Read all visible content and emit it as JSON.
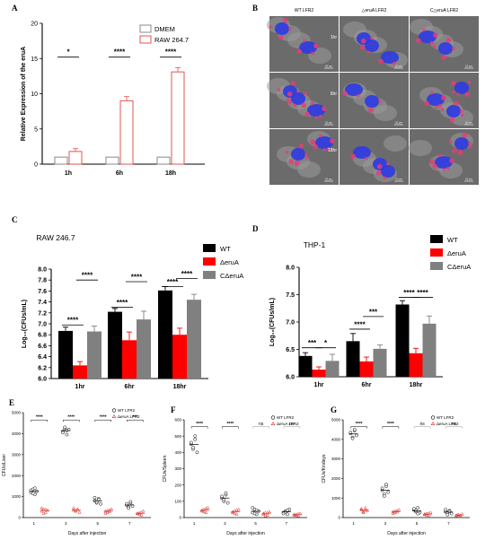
{
  "colors": {
    "dmem": "#888888",
    "raw": "#e0544f",
    "wt": "#000000",
    "mutant": "#ff0000",
    "comp": "#808080",
    "nucleus": "#2f3ce0",
    "bacteria": "#e23d78"
  },
  "panels": {
    "A": "A",
    "B": "B",
    "C": "C",
    "D": "D",
    "E": "E",
    "F": "F",
    "G": "G"
  },
  "micrographs": {
    "columns": [
      "WT LFR2",
      "△eruA LFR2",
      "C△eruA LFR2"
    ],
    "rows": [
      "1hr",
      "6hr",
      "18hr"
    ],
    "scale_text": "10 μm"
  },
  "chart_data": [
    {
      "id": "A",
      "type": "bar",
      "title": "",
      "xlabel": "",
      "ylabel": "Relative Expression of the eruA",
      "categories": [
        "1h",
        "6h",
        "18h"
      ],
      "ylim": [
        0,
        20
      ],
      "yticks": [
        0,
        5,
        10,
        15,
        20
      ],
      "legend_position": "top-right",
      "series": [
        {
          "name": "DMEM",
          "values": [
            1.0,
            1.0,
            1.0
          ],
          "errors": [
            0,
            0,
            0
          ],
          "style": "outline",
          "color": "#888888"
        },
        {
          "name": "RAW 264.7",
          "values": [
            1.8,
            9.0,
            13.1
          ],
          "errors": [
            0.4,
            0.6,
            0.6
          ],
          "style": "outline",
          "color": "#e0544f"
        }
      ],
      "significance": [
        "*",
        "****",
        "****"
      ]
    },
    {
      "id": "C",
      "type": "bar",
      "title": "RAW 246.7",
      "xlabel": "",
      "ylabel": "Log₁₀(CFUs/mL)",
      "categories": [
        "1hr",
        "6hr",
        "18hr"
      ],
      "ylim": [
        6.0,
        8.0
      ],
      "yticks": [
        "6.0",
        "6.2",
        "6.4",
        "6.6",
        "6.8",
        "7.0",
        "7.2",
        "7.4",
        "7.6",
        "7.8",
        "8.0"
      ],
      "legend_position": "top-right",
      "series": [
        {
          "name": "WT",
          "values": [
            6.87,
            7.22,
            7.61
          ],
          "errors": [
            0.07,
            0.06,
            0.07
          ],
          "color": "#000000"
        },
        {
          "name": "ΔeruA",
          "values": [
            6.24,
            6.7,
            6.8
          ],
          "errors": [
            0.07,
            0.15,
            0.12
          ],
          "color": "#ff0000"
        },
        {
          "name": "CΔeruA",
          "values": [
            6.86,
            7.08,
            7.44
          ],
          "errors": [
            0.1,
            0.15,
            0.1
          ],
          "color": "#808080"
        }
      ],
      "significance": [
        [
          "****",
          "****"
        ],
        [
          "****",
          "****"
        ],
        [
          "****",
          "****"
        ]
      ]
    },
    {
      "id": "D",
      "type": "bar",
      "title": "THP-1",
      "xlabel": "",
      "ylabel": "Log₁₀(CFUs/mL)",
      "categories": [
        "1hr",
        "6hr",
        "18hr"
      ],
      "ylim": [
        6.0,
        8.0
      ],
      "yticks": [
        "6.0",
        "6.5",
        "7.0",
        "7.5",
        "8.0"
      ],
      "legend_position": "top-right",
      "series": [
        {
          "name": "WT",
          "values": [
            6.38,
            6.65,
            7.32
          ],
          "errors": [
            0.06,
            0.14,
            0.07
          ],
          "color": "#000000"
        },
        {
          "name": "ΔeruA",
          "values": [
            6.13,
            6.28,
            6.43
          ],
          "errors": [
            0.05,
            0.08,
            0.09
          ],
          "color": "#ff0000"
        },
        {
          "name": "CΔeruA",
          "values": [
            6.29,
            6.51,
            6.97
          ],
          "errors": [
            0.12,
            0.07,
            0.14
          ],
          "color": "#808080"
        }
      ],
      "significance": [
        [
          "***",
          "*"
        ],
        [
          "****",
          "***"
        ],
        [
          "****",
          "****"
        ]
      ]
    },
    {
      "id": "E",
      "type": "scatter",
      "title": "",
      "xlabel": "Days after injection",
      "ylabel": "CFUs/Liver",
      "categories": [
        "1",
        "3",
        "5",
        "7"
      ],
      "ylim": [
        0,
        5000
      ],
      "yticks": [
        0,
        1000,
        2000,
        3000,
        4000,
        5000
      ],
      "legend_position": "top-right",
      "series": [
        {
          "name": "WT LFR2",
          "marker": "circle",
          "color": "#000000",
          "points": [
            [
              1200,
              1350,
              1100,
              1250,
              1300,
              1150,
              1400
            ],
            [
              4100,
              4250,
              3950,
              4200,
              4050,
              4300,
              4150
            ],
            [
              800,
              700,
              900,
              650,
              950,
              750,
              850
            ],
            [
              600,
              500,
              700,
              550,
              650,
              450,
              750
            ]
          ]
        },
        {
          "name": "ΔeruA LFR2",
          "marker": "triangle",
          "color": "#d9342b",
          "points": [
            [
              300,
              400,
              250,
              350,
              450,
              200,
              380
            ],
            [
              350,
              300,
              400,
              250,
              450,
              320,
              380
            ],
            [
              300,
              250,
              350,
              400,
              200,
              330,
              280
            ],
            [
              200,
              150,
              250,
              300,
              180,
              220,
              120
            ]
          ]
        }
      ],
      "significance": [
        "****",
        "****",
        "****",
        "***"
      ]
    },
    {
      "id": "F",
      "type": "scatter",
      "title": "",
      "xlabel": "Days after injection",
      "ylabel": "CFUs/Spleen",
      "categories": [
        "1",
        "3",
        "5",
        "7"
      ],
      "ylim": [
        0,
        600
      ],
      "yticks": [
        0,
        100,
        200,
        300,
        400,
        500,
        600
      ],
      "legend_position": "top-right",
      "series": [
        {
          "name": "WT LFR2",
          "marker": "circle",
          "color": "#000000",
          "points": [
            [
              450,
              420,
              480,
              400,
              460,
              430,
              500
            ],
            [
              120,
              100,
              140,
              90,
              130,
              110,
              150
            ],
            [
              30,
              50,
              20,
              40,
              60,
              25,
              45
            ],
            [
              30,
              40,
              20,
              50,
              25,
              35,
              45
            ]
          ]
        },
        {
          "name": "ΔeruA LFR2",
          "marker": "triangle",
          "color": "#d9342b",
          "points": [
            [
              40,
              50,
              30,
              60,
              45,
              35,
              55
            ],
            [
              30,
              40,
              20,
              50,
              35,
              25,
              45
            ],
            [
              20,
              30,
              15,
              35,
              25,
              10,
              28
            ],
            [
              15,
              20,
              10,
              25,
              18,
              12,
              22
            ]
          ]
        }
      ],
      "significance": [
        "****",
        "****",
        "ns",
        "ns"
      ]
    },
    {
      "id": "G",
      "type": "scatter",
      "title": "",
      "xlabel": "Days after injection",
      "ylabel": "CFUs/Kindeys",
      "categories": [
        "1",
        "3",
        "5",
        "7"
      ],
      "ylim": [
        0,
        5000
      ],
      "yticks": [
        0,
        1000,
        2000,
        3000,
        4000,
        5000
      ],
      "legend_position": "top-right",
      "series": [
        {
          "name": "WT LFR2",
          "marker": "circle",
          "color": "#000000",
          "points": [
            [
              4300,
              4100,
              4450,
              4200,
              4350,
              4050,
              4500
            ],
            [
              1400,
              1200,
              1600,
              1300,
              1500,
              1100,
              1700
            ],
            [
              400,
              300,
              500,
              250,
              450,
              350,
              200
            ],
            [
              300,
              250,
              350,
              200,
              400,
              150,
              320
            ]
          ]
        },
        {
          "name": "ΔeruA LFR2",
          "marker": "triangle",
          "color": "#d9342b",
          "points": [
            [
              400,
              300,
              500,
              350,
              450,
              250,
              380
            ],
            [
              300,
              250,
              350,
              400,
              200,
              330,
              280
            ],
            [
              150,
              200,
              100,
              250,
              180,
              120,
              220
            ],
            [
              120,
              150,
              100,
              180,
              90,
              140,
              110
            ]
          ]
        }
      ],
      "significance": [
        "****",
        "****",
        "ns",
        "ns"
      ]
    }
  ]
}
